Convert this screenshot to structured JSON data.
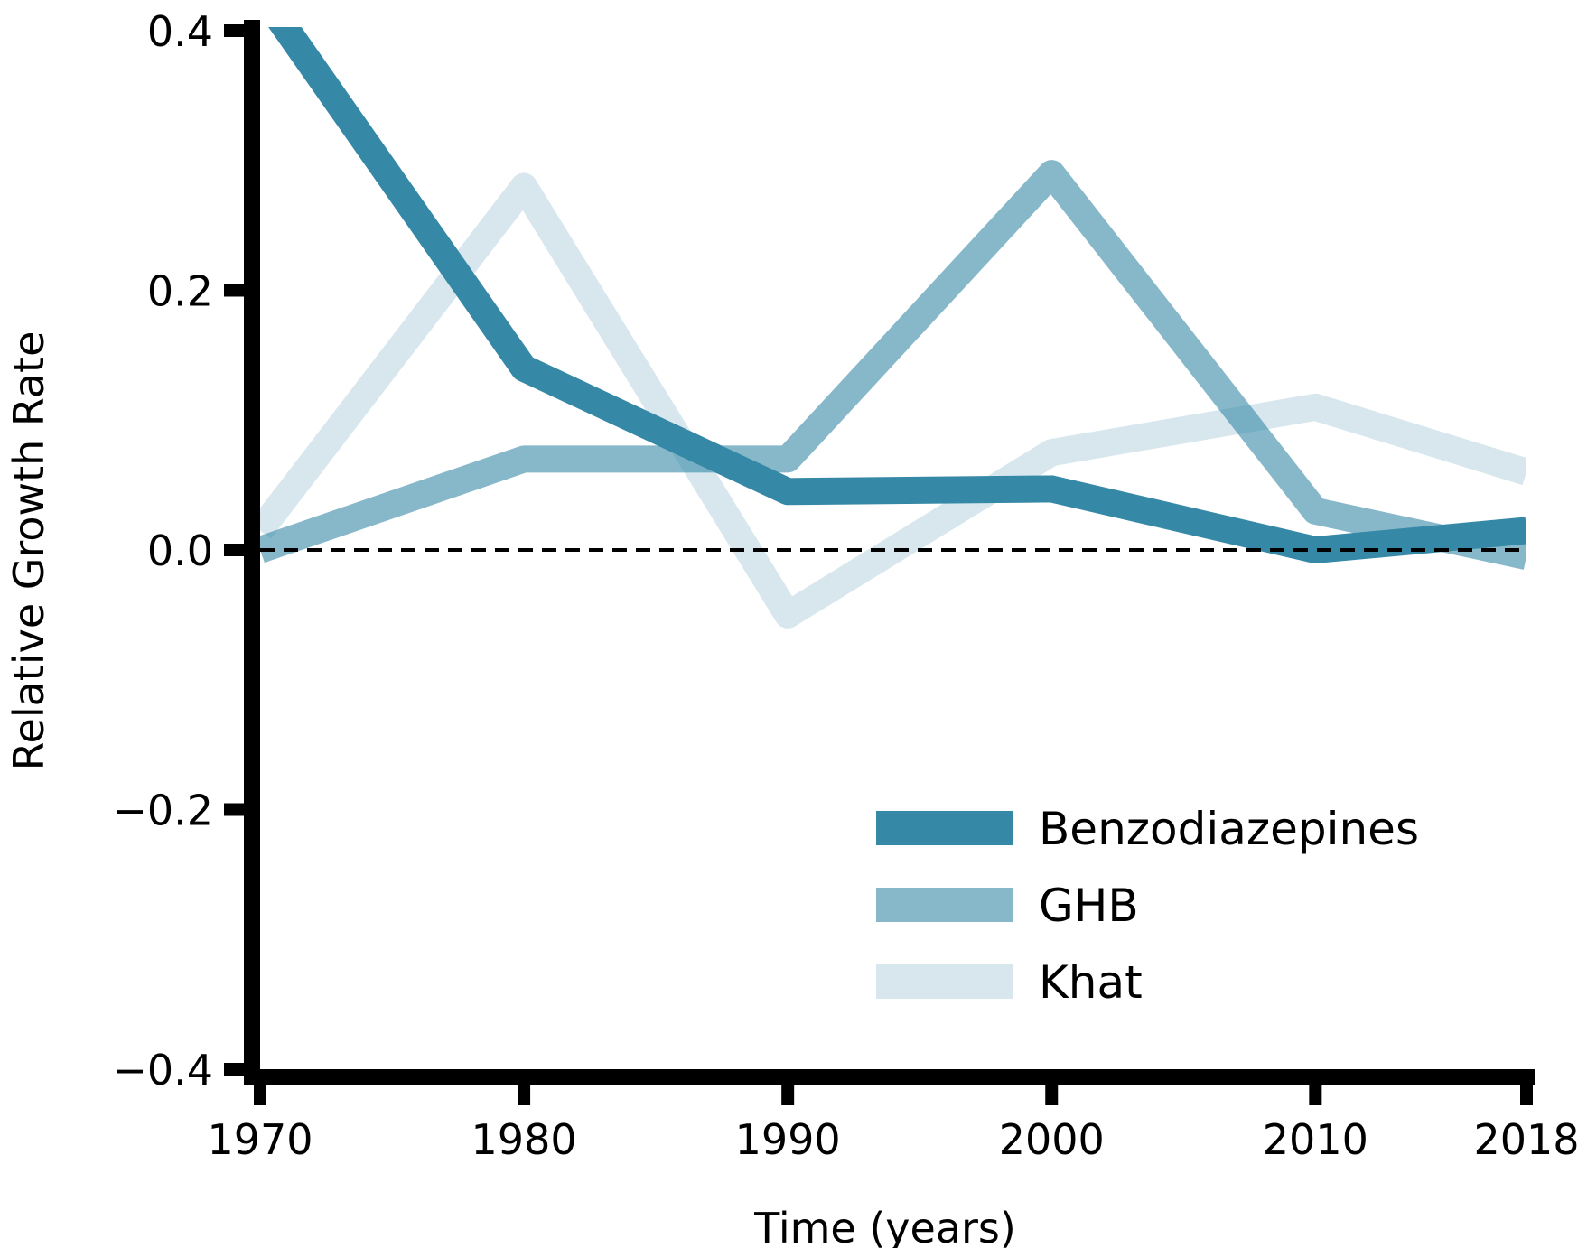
{
  "chart_data": {
    "type": "line",
    "title": "",
    "xlabel": "Time (years)",
    "ylabel": "Relative Growth Rate",
    "x": [
      1970,
      1980,
      1990,
      2000,
      2010,
      2018
    ],
    "xticks": [
      "1970",
      "1980",
      "1990",
      "2000",
      "2010",
      "2018"
    ],
    "yticks": [
      "0.4",
      "0.2",
      "0.0",
      "−0.2",
      "−0.4"
    ],
    "ytick_values": [
      0.4,
      0.2,
      0.0,
      -0.2,
      -0.4
    ],
    "xlim": [
      1970,
      2018
    ],
    "ylim": [
      -0.4,
      0.4
    ],
    "grid": false,
    "reference_line": {
      "y": 0.0,
      "style": "dashed",
      "color": "#000000"
    },
    "legend_position": "lower-right",
    "series": [
      {
        "name": "Benzodiazepines",
        "color": "#3588A6",
        "opacity": 1.0,
        "values": [
          0.43,
          0.14,
          0.045,
          0.047,
          0.0,
          0.015
        ]
      },
      {
        "name": "GHB",
        "color": "#3588A6",
        "opacity": 0.6,
        "values": [
          0.0,
          0.07,
          0.07,
          0.29,
          0.03,
          -0.005
        ]
      },
      {
        "name": "Khat",
        "color": "#3588A6",
        "opacity": 0.2,
        "values": [
          0.015,
          0.28,
          -0.05,
          0.075,
          0.11,
          0.06
        ]
      }
    ]
  }
}
